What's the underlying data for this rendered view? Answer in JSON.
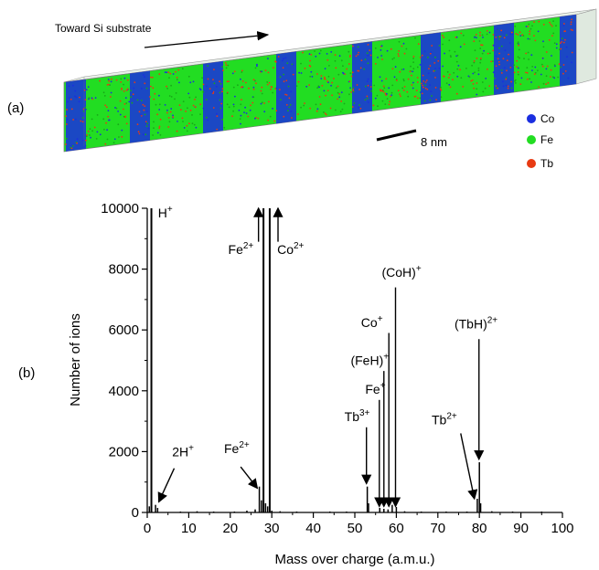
{
  "panel_a": {
    "label": "(a)",
    "direction_label": "Toward Si substrate",
    "scale_label": "8 nm",
    "legend": [
      {
        "name": "Co",
        "color": "#1a2ee0"
      },
      {
        "name": "Fe",
        "color": "#22dd22"
      },
      {
        "name": "Tb",
        "color": "#e83a12"
      }
    ],
    "colors": {
      "co": "#1a2ee0",
      "fe": "#22dd22",
      "tb": "#e83a12"
    }
  },
  "panel_b": {
    "label": "(b)"
  },
  "chart_data": {
    "type": "line",
    "title": "",
    "xlabel": "Mass over charge (a.m.u.)",
    "ylabel": "Number of ions",
    "xlim": [
      0,
      100
    ],
    "ylim": [
      0,
      10000
    ],
    "x_ticks": [
      "0",
      "10",
      "20",
      "30",
      "40",
      "50",
      "60",
      "70",
      "80",
      "90",
      "100"
    ],
    "y_ticks": [
      "0",
      "2000",
      "4000",
      "6000",
      "8000",
      "10000"
    ],
    "series": [
      {
        "values": [
          {
            "x": 0.5,
            "y": 200
          },
          {
            "x": 1.0,
            "y": 10000
          },
          {
            "x": 2.0,
            "y": 250
          },
          {
            "x": 2.5,
            "y": 150
          },
          {
            "x": 8,
            "y": 30
          },
          {
            "x": 12,
            "y": 40
          },
          {
            "x": 16,
            "y": 30
          },
          {
            "x": 21,
            "y": 30
          },
          {
            "x": 24,
            "y": 60
          },
          {
            "x": 26,
            "y": 100
          },
          {
            "x": 27.0,
            "y": 850
          },
          {
            "x": 27.5,
            "y": 400
          },
          {
            "x": 28.0,
            "y": 10000
          },
          {
            "x": 28.5,
            "y": 300
          },
          {
            "x": 29.0,
            "y": 200
          },
          {
            "x": 29.5,
            "y": 10000
          },
          {
            "x": 30.0,
            "y": 60
          },
          {
            "x": 32,
            "y": 40
          },
          {
            "x": 36,
            "y": 30
          },
          {
            "x": 44,
            "y": 30
          },
          {
            "x": 48,
            "y": 30
          },
          {
            "x": 53.0,
            "y": 850
          },
          {
            "x": 53.3,
            "y": 300
          },
          {
            "x": 56.0,
            "y": 150
          },
          {
            "x": 57.0,
            "y": 120
          },
          {
            "x": 58.0,
            "y": 100
          },
          {
            "x": 59.0,
            "y": 250
          },
          {
            "x": 60.0,
            "y": 180
          },
          {
            "x": 62,
            "y": 40
          },
          {
            "x": 66,
            "y": 30
          },
          {
            "x": 72,
            "y": 30
          },
          {
            "x": 77,
            "y": 30
          },
          {
            "x": 79.5,
            "y": 450
          },
          {
            "x": 80.0,
            "y": 1650
          },
          {
            "x": 80.3,
            "y": 300
          },
          {
            "x": 83,
            "y": 40
          },
          {
            "x": 88,
            "y": 30
          },
          {
            "x": 95,
            "y": 30
          }
        ]
      }
    ],
    "annotations": [
      {
        "text": "H",
        "sup": "+",
        "lx": 2.6,
        "ly": 9700,
        "arrow": null
      },
      {
        "text": "Fe",
        "sup": "2+",
        "lx": 19.5,
        "ly": 8500,
        "arrow": {
          "x1": 26.8,
          "y1": 8900,
          "x2": 26.8,
          "y2": 10000
        }
      },
      {
        "text": "Co",
        "sup": "2+",
        "lx": 31.3,
        "ly": 8500,
        "arrow": {
          "x1": 31.5,
          "y1": 8900,
          "x2": 31.5,
          "y2": 10000
        }
      },
      {
        "text": "2H",
        "sup": "+",
        "lx": 6.0,
        "ly": 1850,
        "arrow": {
          "x1": 6.5,
          "y1": 1450,
          "x2": 2.8,
          "y2": 350
        }
      },
      {
        "text": "Fe",
        "sup": "2+",
        "lx": 18.5,
        "ly": 1950,
        "arrow": {
          "x1": 22.5,
          "y1": 1500,
          "x2": 26.5,
          "y2": 800
        }
      },
      {
        "text": "Tb",
        "sup": "3+",
        "lx": 47.5,
        "ly": 3000,
        "arrow": {
          "x1": 52.8,
          "y1": 2800,
          "x2": 52.8,
          "y2": 950
        }
      },
      {
        "text": "Fe",
        "sup": "+",
        "lx": 52.5,
        "ly": 3900,
        "arrow": {
          "x1": 55.9,
          "y1": 3700,
          "x2": 55.9,
          "y2": 200
        }
      },
      {
        "text": "(FeH)",
        "sup": "+",
        "lx": 49.0,
        "ly": 4850,
        "arrow": {
          "x1": 57.0,
          "y1": 4650,
          "x2": 57.0,
          "y2": 200
        }
      },
      {
        "text": "Co",
        "sup": "+",
        "lx": 51.5,
        "ly": 6100,
        "arrow": {
          "x1": 58.2,
          "y1": 5900,
          "x2": 58.2,
          "y2": 200
        }
      },
      {
        "text": "(CoH)",
        "sup": "+",
        "lx": 56.5,
        "ly": 7750,
        "arrow": {
          "x1": 59.8,
          "y1": 7400,
          "x2": 59.8,
          "y2": 200
        }
      },
      {
        "text": "(TbH)",
        "sup": "2+",
        "lx": 74.0,
        "ly": 6050,
        "arrow": {
          "x1": 79.9,
          "y1": 5700,
          "x2": 79.9,
          "y2": 1750
        }
      },
      {
        "text": "Tb",
        "sup": "2+",
        "lx": 68.5,
        "ly": 2900,
        "arrow": {
          "x1": 75.5,
          "y1": 2600,
          "x2": 78.8,
          "y2": 450
        }
      }
    ]
  }
}
